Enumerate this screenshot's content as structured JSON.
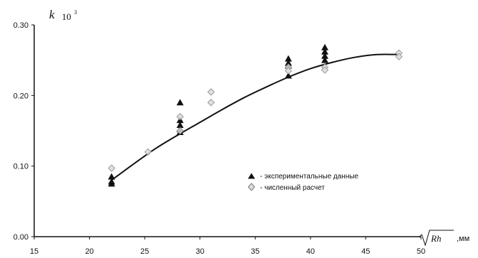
{
  "chart_data": {
    "type": "scatter",
    "title": "",
    "xlabel_sqrt": "Rh",
    "xlabel_unit": ",мм",
    "ylabel_main": "k",
    "ylabel_scale": "10",
    "ylabel_power": "3",
    "xlim": [
      15,
      50
    ],
    "ylim": [
      0,
      0.3
    ],
    "x_ticks": [
      "15",
      "20",
      "25",
      "30",
      "35",
      "40",
      "45",
      "50"
    ],
    "y_ticks": [
      "0.00",
      "0.10",
      "0.20",
      "0.30"
    ],
    "grid": false,
    "legend_position": "center-right",
    "series": [
      {
        "name": "- экспериментальные данные",
        "marker": "triangle",
        "color": "#111111",
        "points": [
          [
            22,
            0.085
          ],
          [
            22,
            0.078
          ],
          [
            22,
            0.075
          ],
          [
            28.2,
            0.19
          ],
          [
            28.2,
            0.165
          ],
          [
            28.2,
            0.158
          ],
          [
            28.2,
            0.152
          ],
          [
            28.2,
            0.148
          ],
          [
            38,
            0.252
          ],
          [
            38,
            0.246
          ],
          [
            38,
            0.242
          ],
          [
            38,
            0.228
          ],
          [
            41.3,
            0.268
          ],
          [
            41.3,
            0.262
          ],
          [
            41.3,
            0.256
          ],
          [
            41.3,
            0.25
          ]
        ]
      },
      {
        "name": "- численный расчет",
        "marker": "diamond",
        "color": "#999999",
        "points": [
          [
            22,
            0.097
          ],
          [
            25.3,
            0.12
          ],
          [
            28.2,
            0.15
          ],
          [
            28.2,
            0.17
          ],
          [
            31,
            0.19
          ],
          [
            31,
            0.205
          ],
          [
            38,
            0.24
          ],
          [
            38,
            0.235
          ],
          [
            41.3,
            0.24
          ],
          [
            41.3,
            0.236
          ],
          [
            48,
            0.26
          ],
          [
            48,
            0.255
          ]
        ]
      },
      {
        "name": "",
        "type": "line",
        "color": "#111111",
        "points": [
          [
            22,
            0.08
          ],
          [
            24,
            0.103
          ],
          [
            26,
            0.125
          ],
          [
            28,
            0.144
          ],
          [
            30,
            0.162
          ],
          [
            32,
            0.18
          ],
          [
            34,
            0.197
          ],
          [
            36,
            0.212
          ],
          [
            38,
            0.226
          ],
          [
            40,
            0.238
          ],
          [
            42,
            0.247
          ],
          [
            44,
            0.254
          ],
          [
            46,
            0.258
          ],
          [
            48,
            0.258
          ]
        ]
      }
    ]
  }
}
